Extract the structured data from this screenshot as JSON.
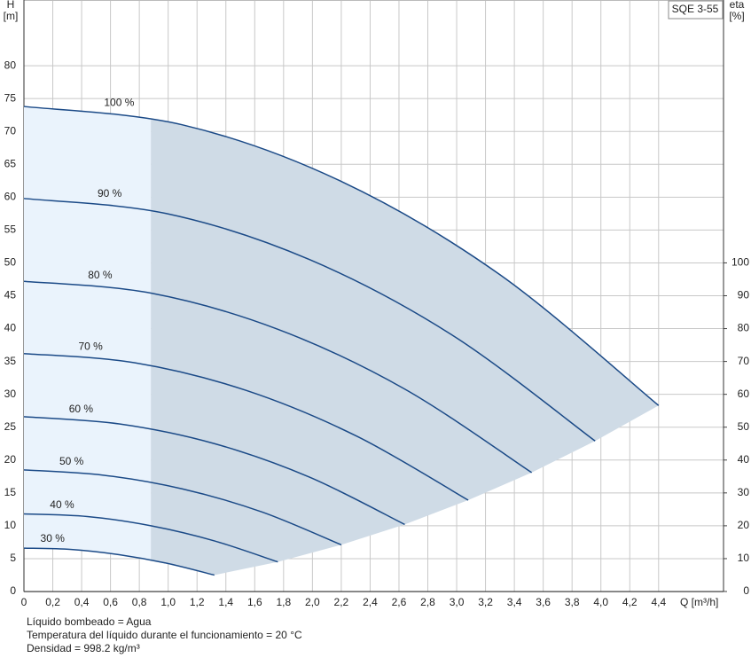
{
  "chart_data": {
    "type": "line",
    "product": "SQE 3-55",
    "y_label": "H",
    "y_unit": "[m]",
    "y2_label": "eta",
    "y2_unit": "[%]",
    "x_label": "Q [m³/h]",
    "notes": [
      "Líquido bombeado = Agua",
      "Temperatura del líquido durante el funcionamiento = 20 °C",
      "Densidad = 998.2 kg/m³"
    ],
    "xlim": [
      0,
      4.85
    ],
    "ylim": [
      0,
      90
    ],
    "y2lim": [
      0,
      180
    ],
    "xticks": [
      0,
      {
        "value": 0.2,
        "label": "0,2"
      },
      {
        "value": 0.4,
        "label": "0,4"
      },
      {
        "value": 0.6,
        "label": "0,6"
      },
      {
        "value": 0.8,
        "label": "0,8"
      },
      {
        "value": 1.0,
        "label": "1,0"
      },
      {
        "value": 1.2,
        "label": "1,2"
      },
      {
        "value": 1.4,
        "label": "1,4"
      },
      {
        "value": 1.6,
        "label": "1,6"
      },
      {
        "value": 1.8,
        "label": "1,8"
      },
      {
        "value": 2.0,
        "label": "2,0"
      },
      {
        "value": 2.2,
        "label": "2,2"
      },
      {
        "value": 2.4,
        "label": "2,4"
      },
      {
        "value": 2.6,
        "label": "2,6"
      },
      {
        "value": 2.8,
        "label": "2,8"
      },
      {
        "value": 3.0,
        "label": "3,0"
      },
      {
        "value": 3.2,
        "label": "3,2"
      },
      {
        "value": 3.4,
        "label": "3,4"
      },
      {
        "value": 3.6,
        "label": "3,6"
      },
      {
        "value": 3.8,
        "label": "3,8"
      },
      {
        "value": 4.0,
        "label": "4,0"
      },
      {
        "value": 4.2,
        "label": "4,2"
      },
      {
        "value": 4.4,
        "label": "4,4"
      }
    ],
    "yticks": [
      0,
      5,
      10,
      15,
      20,
      25,
      30,
      35,
      40,
      45,
      50,
      55,
      60,
      65,
      70,
      75,
      80
    ],
    "y2ticks": [
      0,
      10,
      20,
      30,
      40,
      50,
      60,
      70,
      80,
      90,
      100
    ],
    "grid": true,
    "min_flow_q": 0.88,
    "series": [
      {
        "name": "100 %",
        "color": "#1b4a87",
        "x": [
          0,
          1.1,
          2.2,
          3.3,
          4.4
        ],
        "values": [
          73.8,
          71.0,
          62.4,
          48.2,
          28.3
        ]
      },
      {
        "name": "90 %",
        "color": "#1b4a87",
        "x": [
          0,
          0.99,
          1.98,
          2.97,
          3.96
        ],
        "values": [
          59.8,
          57.5,
          50.5,
          39.0,
          22.9
        ]
      },
      {
        "name": "80 %",
        "color": "#1b4a87",
        "x": [
          0,
          0.88,
          1.76,
          2.64,
          3.52
        ],
        "values": [
          47.2,
          45.4,
          39.9,
          30.8,
          18.1
        ]
      },
      {
        "name": "70 %",
        "color": "#1b4a87",
        "x": [
          0,
          0.77,
          1.54,
          2.31,
          3.08
        ],
        "values": [
          36.2,
          34.8,
          30.6,
          23.6,
          13.9
        ]
      },
      {
        "name": "60 %",
        "color": "#1b4a87",
        "x": [
          0,
          0.66,
          1.32,
          1.98,
          2.64
        ],
        "values": [
          26.6,
          25.5,
          22.5,
          17.4,
          10.2
        ]
      },
      {
        "name": "50 %",
        "color": "#1b4a87",
        "x": [
          0,
          0.55,
          1.1,
          1.65,
          2.2
        ],
        "values": [
          18.5,
          17.7,
          15.6,
          12.1,
          7.1
        ]
      },
      {
        "name": "40 %",
        "color": "#1b4a87",
        "x": [
          0,
          0.44,
          0.88,
          1.32,
          1.76
        ],
        "values": [
          11.8,
          11.4,
          10.0,
          7.7,
          4.5
        ]
      },
      {
        "name": "30 %",
        "color": "#1b4a87",
        "x": [
          0,
          0.33,
          0.66,
          0.99,
          1.32
        ],
        "values": [
          6.6,
          6.4,
          5.6,
          4.3,
          2.5
        ]
      }
    ]
  }
}
